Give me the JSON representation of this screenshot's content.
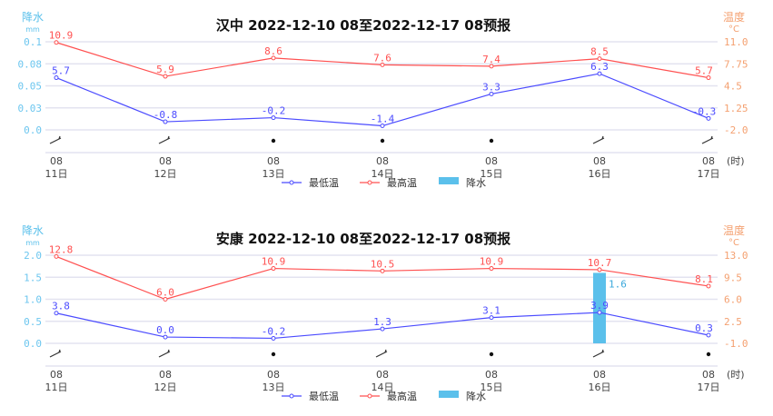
{
  "chart_data": [
    {
      "type": "line",
      "title": "汉中 2022-12-10 08至2022-12-17 08预报",
      "left_axis": {
        "label": "降水",
        "unit": "mm",
        "ticks": [
          "0.1",
          "0.08",
          "0.05",
          "0.03",
          "0.0"
        ],
        "range": [
          0,
          0.1
        ]
      },
      "right_axis": {
        "label": "温度",
        "unit": "°C",
        "ticks": [
          "11.0",
          "7.75",
          "4.5",
          "1.25",
          "-2.0"
        ],
        "range": [
          -2,
          11
        ]
      },
      "x_hours": [
        "08",
        "08",
        "08",
        "08",
        "08",
        "08",
        "08"
      ],
      "x_days": [
        "11日",
        "12日",
        "13日",
        "14日",
        "15日",
        "16日",
        "17日"
      ],
      "x_unit": "(时)",
      "wind_icons": [
        "wind-barb",
        "wind-barb",
        "calm-dot",
        "calm-dot",
        "calm-dot",
        "wind-barb",
        "wind-barb"
      ],
      "series": [
        {
          "name": "最低温",
          "color": "#4b4bff",
          "values": [
            5.7,
            -0.8,
            -0.2,
            -1.4,
            3.3,
            6.3,
            -0.3
          ],
          "labels": [
            "5.7",
            "-0.8",
            "-0.2",
            "-1.4",
            "3.3",
            "6.3",
            "-0.3"
          ]
        },
        {
          "name": "最高温",
          "color": "#ff5050",
          "values": [
            10.9,
            5.9,
            8.6,
            7.6,
            7.4,
            8.5,
            5.7
          ],
          "labels": [
            "10.9",
            "5.9",
            "8.6",
            "7.6",
            "7.4",
            "8.5",
            "5.7"
          ]
        }
      ],
      "precip": {
        "name": "降水",
        "color": "#5bc0eb",
        "values": [
          0,
          0,
          0,
          0,
          0,
          0,
          0
        ]
      },
      "grid": true,
      "legend": "bottom"
    },
    {
      "type": "line",
      "title": "安康 2022-12-10 08至2022-12-17 08预报",
      "left_axis": {
        "label": "降水",
        "unit": "mm",
        "ticks": [
          "2.0",
          "1.5",
          "1.0",
          "0.5",
          "0.0"
        ],
        "range": [
          0,
          2
        ]
      },
      "right_axis": {
        "label": "温度",
        "unit": "°C",
        "ticks": [
          "13.0",
          "9.5",
          "6.0",
          "2.5",
          "-1.0"
        ],
        "range": [
          -1,
          13
        ]
      },
      "x_hours": [
        "08",
        "08",
        "08",
        "08",
        "08",
        "08",
        "08"
      ],
      "x_days": [
        "11日",
        "12日",
        "13日",
        "14日",
        "15日",
        "16日",
        "17日"
      ],
      "x_unit": "(时)",
      "wind_icons": [
        "wind-barb",
        "wind-barb",
        "calm-dot",
        "wind-barb",
        "calm-dot",
        "wind-barb",
        "calm-dot"
      ],
      "series": [
        {
          "name": "最低温",
          "color": "#4b4bff",
          "values": [
            3.8,
            0.0,
            -0.2,
            1.3,
            3.1,
            3.9,
            0.3
          ],
          "labels": [
            "3.8",
            "0.0",
            "-0.2",
            "1.3",
            "3.1",
            "3.9",
            "0.3"
          ]
        },
        {
          "name": "最高温",
          "color": "#ff5050",
          "values": [
            12.8,
            6.0,
            10.9,
            10.5,
            10.9,
            10.7,
            8.1
          ],
          "labels": [
            "12.8",
            "6.0",
            "10.9",
            "10.5",
            "10.9",
            "10.7",
            "8.1"
          ]
        }
      ],
      "precip": {
        "name": "降水",
        "color": "#5bc0eb",
        "values": [
          0,
          0,
          0,
          0,
          0,
          1.6,
          0
        ],
        "labels": [
          "",
          "",
          "",
          "",
          "",
          "1.6",
          ""
        ]
      },
      "grid": true,
      "legend": "bottom"
    }
  ]
}
